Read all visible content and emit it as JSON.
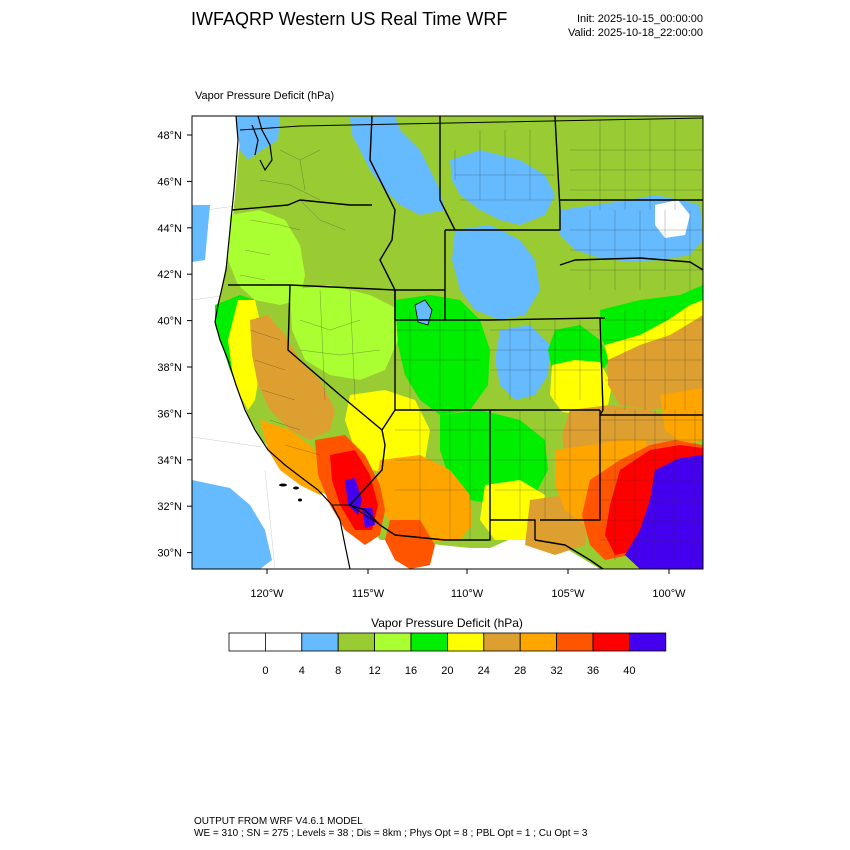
{
  "header": {
    "title": "IWFAQRP Western US Real Time WRF",
    "init": "Init: 2025-10-15_00:00:00",
    "valid": "Valid: 2025-10-18_22:00:00"
  },
  "map": {
    "field_title": "Vapor Pressure Deficit   (hPa)",
    "lat_labels": [
      "48°N",
      "46°N",
      "44°N",
      "42°N",
      "40°N",
      "38°N",
      "36°N",
      "34°N",
      "32°N",
      "30°N"
    ],
    "lon_labels": [
      "120°W",
      "115°W",
      "110°W",
      "105°W",
      "100°W"
    ],
    "colors": {
      "ocean": "#ffffff",
      "base": "#99cc33",
      "light_blue": "#66bbff",
      "lime": "#aaff33",
      "green": "#00ee00",
      "yellow": "#ffff00",
      "tan": "#dda030",
      "orange": "#ffa500",
      "dark_orange": "#ff5500",
      "red": "#ff0000",
      "purple": "#4400ee"
    }
  },
  "colorbar": {
    "title": "Vapor Pressure Deficit  (hPa)",
    "colors": [
      "#ffffff",
      "#ffffff",
      "#66bbff",
      "#99cc33",
      "#aaff33",
      "#00ee00",
      "#ffff00",
      "#dda030",
      "#ffa500",
      "#ff5500",
      "#ff0000",
      "#4400ee"
    ],
    "labels": [
      "0",
      "4",
      "8",
      "12",
      "16",
      "20",
      "24",
      "28",
      "32",
      "36",
      "40"
    ]
  },
  "footer": {
    "line1": "OUTPUT FROM WRF V4.6.1 MODEL",
    "line2": "WE = 310 ; SN = 275 ; Levels = 38 ; Dis = 8km ; Phys Opt = 8 ; PBL Opt = 1 ; Cu Opt = 3"
  }
}
